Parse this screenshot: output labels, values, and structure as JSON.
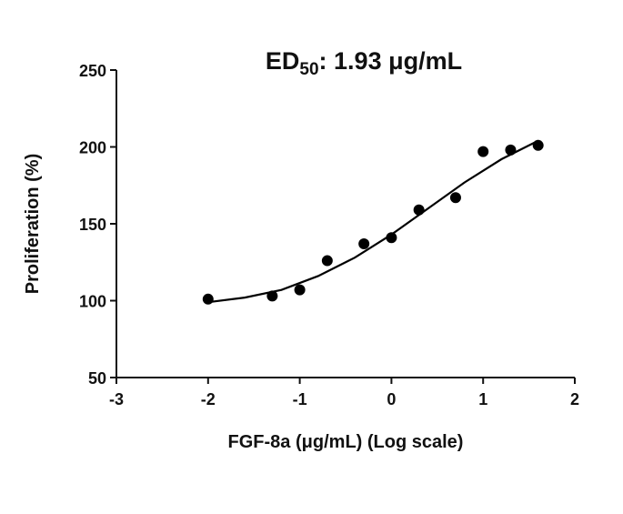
{
  "chart_data": {
    "type": "scatter",
    "title": {
      "main": "ED",
      "subscript": "50",
      "rest": ": 1.93 μg/mL"
    },
    "x_label": "FGF-8a (μg/mL) (Log scale)",
    "y_label": "Proliferation (%)",
    "xlim": [
      -3,
      2
    ],
    "xticks": [
      -3,
      -2,
      -1,
      0,
      1,
      2
    ],
    "ylim": [
      50,
      250
    ],
    "yticks": [
      50,
      100,
      150,
      200,
      250
    ],
    "points": {
      "color": "#000000",
      "x": [
        -2,
        -1.3,
        -1,
        -0.7,
        -0.3,
        0,
        0.3,
        0.7,
        1,
        1.3,
        1.6
      ],
      "values": [
        101,
        103,
        107,
        126,
        137,
        141,
        159,
        167,
        197,
        198,
        201
      ]
    },
    "fit": {
      "color": "#000000",
      "x": [
        -2,
        -1.6,
        -1.2,
        -0.8,
        -0.4,
        0,
        0.4,
        0.8,
        1.2,
        1.6
      ],
      "values": [
        99,
        102,
        107,
        116,
        128,
        143,
        160,
        177,
        192,
        204
      ]
    }
  }
}
